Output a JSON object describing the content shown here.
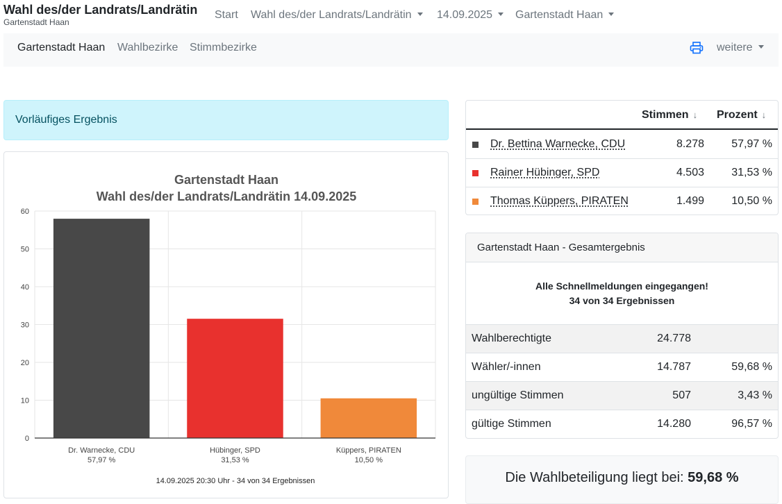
{
  "brand": {
    "title": "Wahl des/der Landrats/Landrätin",
    "subtitle": "Gartenstadt Haan"
  },
  "nav": {
    "start": "Start",
    "election": "Wahl des/der Landrats/Landrätin",
    "date": "14.09.2025",
    "area": "Gartenstadt Haan"
  },
  "subnav": {
    "items": [
      "Gartenstadt Haan",
      "Wahlbezirke",
      "Stimmbezirke"
    ],
    "print_icon": "printer-icon",
    "more": "weitere"
  },
  "alert": {
    "text": "Vorläufiges Ergebnis"
  },
  "results": {
    "col_votes": "Stimmen",
    "col_percent": "Prozent",
    "sort_icon": "↓",
    "rows": [
      {
        "name": "Dr. Bettina Warnecke, CDU",
        "votes": "8.278",
        "percent": "57,97 %",
        "color": "#484848"
      },
      {
        "name": "Rainer Hübinger, SPD",
        "votes": "4.503",
        "percent": "31,53 %",
        "color": "#e8312e"
      },
      {
        "name": "Thomas Küppers, PIRATEN",
        "votes": "1.499",
        "percent": "10,50 %",
        "color": "#f0893a"
      }
    ]
  },
  "total": {
    "header": "Gartenstadt Haan - Gesamtergebnis",
    "notice_line1": "Alle Schnellmeldungen eingegangen!",
    "notice_line2": "34 von 34 Ergebnissen",
    "rows": [
      {
        "label": "Wahlberechtigte",
        "value": "24.778",
        "percent": ""
      },
      {
        "label": "Wähler/-innen",
        "value": "14.787",
        "percent": "59,68 %"
      },
      {
        "label": "ungültige Stimmen",
        "value": "507",
        "percent": "3,43 %"
      },
      {
        "label": "gültige Stimmen",
        "value": "14.280",
        "percent": "96,57 %"
      }
    ]
  },
  "turnout": {
    "text": "Die Wahlbeteiligung liegt bei:",
    "value": "59,68 %"
  },
  "chart_data": {
    "type": "bar",
    "title": "Gartenstadt Haan",
    "subtitle": "Wahl des/der Landrats/Landrätin 14.09.2025",
    "categories": [
      "Dr. Warnecke, CDU",
      "Hübinger, SPD",
      "Küppers, PIRATEN"
    ],
    "category_sublabels": [
      "57,97 %",
      "31,53 %",
      "10,50 %"
    ],
    "values": [
      57.97,
      31.53,
      10.5
    ],
    "colors": [
      "#484848",
      "#e8312e",
      "#f0893a"
    ],
    "ylim": [
      0,
      60
    ],
    "yticks": [
      0,
      10,
      20,
      30,
      40,
      50,
      60
    ],
    "grid": true,
    "footer": "14.09.2025 20:30 Uhr - 34 von 34 Ergebnissen"
  }
}
